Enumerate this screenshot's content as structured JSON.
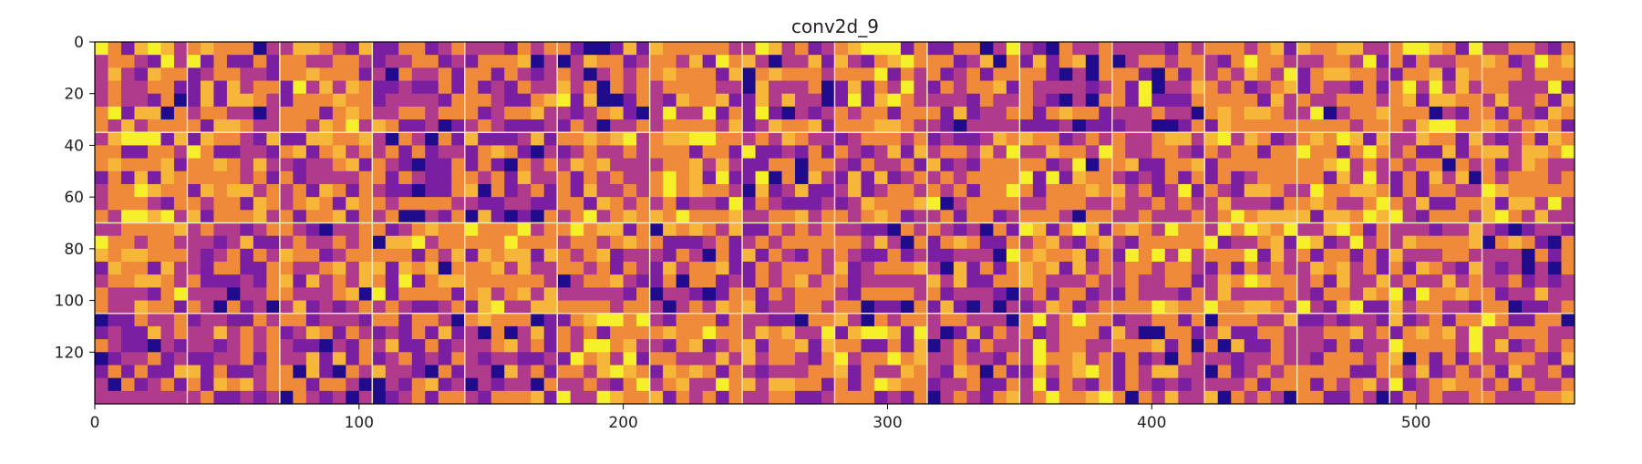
{
  "chart_data": {
    "type": "heatmap",
    "title": "conv2d_9",
    "xlabel": "",
    "ylabel": "",
    "xlim": [
      0,
      560
    ],
    "ylim": [
      140,
      0
    ],
    "xticks": [
      0,
      100,
      200,
      300,
      400,
      500
    ],
    "yticks": [
      0,
      20,
      40,
      60,
      80,
      100,
      120
    ],
    "grid": false,
    "colormap": "plasma",
    "tiles": {
      "rows": 4,
      "cols": 16,
      "tile_size": 35
    }
  },
  "colors": {
    "dark": "#1f0b8c",
    "purple": "#7a1fa2",
    "magenta": "#b03a8c",
    "orange": "#ef8a3a",
    "amber": "#f6b63a",
    "yellow": "#f5f029",
    "separator": "#f4e6b8"
  }
}
